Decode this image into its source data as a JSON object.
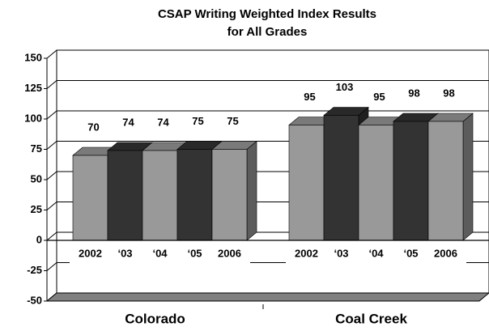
{
  "chart_data": {
    "type": "bar3d",
    "title": [
      "CSAP Writing Weighted Index Results",
      "for All Grades"
    ],
    "categories": [
      "Colorado",
      "Coal Creek"
    ],
    "series": [
      {
        "name": "2002",
        "color": "#999999",
        "values": [
          70,
          95
        ]
      },
      {
        "name": "‘03",
        "color": "#333333",
        "values": [
          74,
          103
        ]
      },
      {
        "name": "‘04",
        "color": "#999999",
        "values": [
          74,
          95
        ]
      },
      {
        "name": "‘05",
        "color": "#333333",
        "values": [
          75,
          98
        ]
      },
      {
        "name": "2006",
        "color": "#999999",
        "values": [
          75,
          98
        ]
      }
    ],
    "ylim": [
      -50,
      150
    ],
    "yticks": [
      -50,
      -25,
      0,
      25,
      50,
      75,
      100,
      125,
      150
    ],
    "grid": true
  }
}
